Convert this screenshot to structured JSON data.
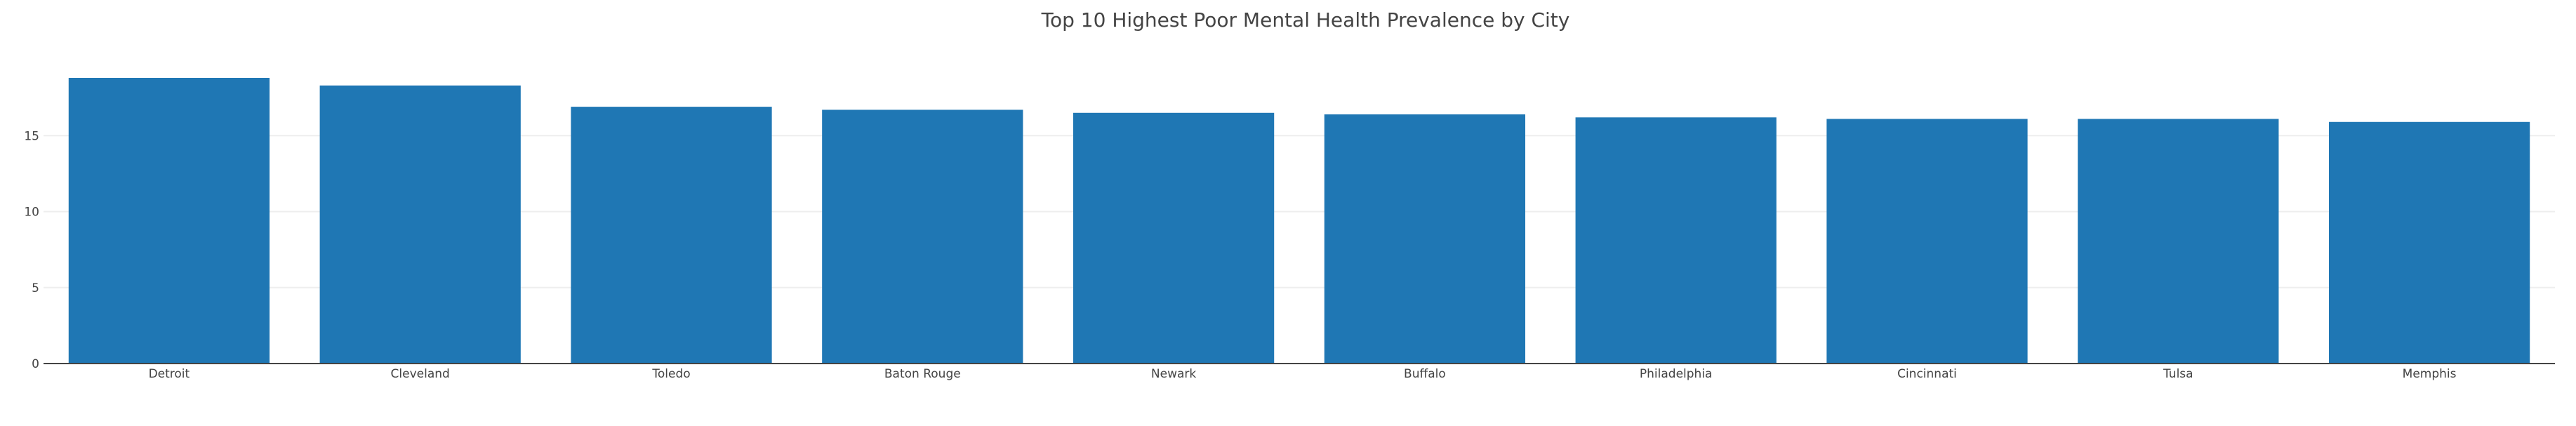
{
  "chart_data": {
    "type": "bar",
    "title": "Top 10 Highest Poor Mental Health Prevalence by City",
    "xlabel": "",
    "ylabel": "",
    "categories": [
      "Detroit",
      "Cleveland",
      "Toledo",
      "Baton Rouge",
      "Newark",
      "Buffalo",
      "Philadelphia",
      "Cincinnati",
      "Tulsa",
      "Memphis"
    ],
    "values": [
      18.8,
      18.3,
      16.9,
      16.7,
      16.5,
      16.4,
      16.2,
      16.1,
      16.1,
      15.9
    ],
    "ylim": [
      0,
      20
    ],
    "yticks": [
      0,
      5,
      10,
      15
    ],
    "grid": true,
    "bar_color": "#1f77b4"
  }
}
